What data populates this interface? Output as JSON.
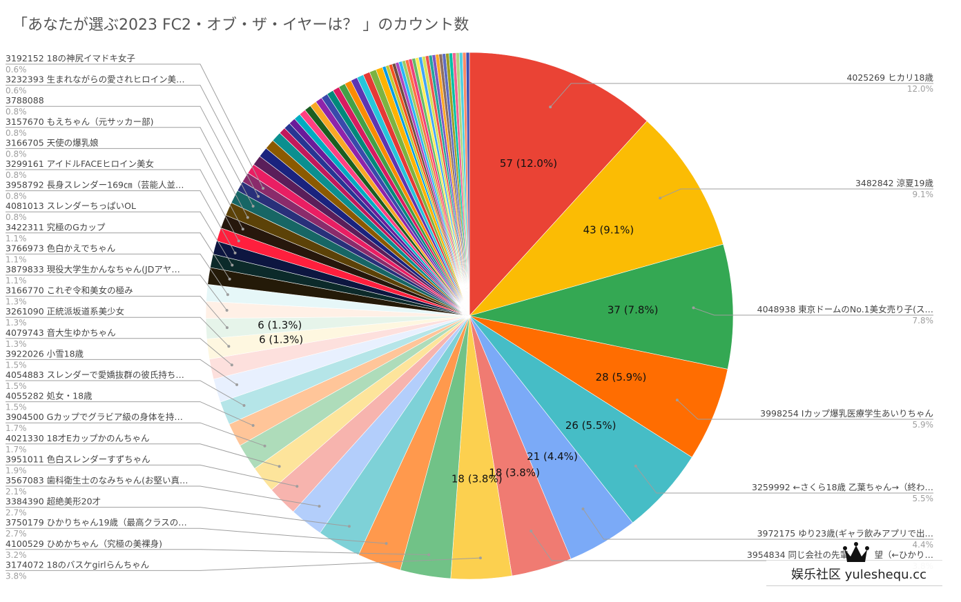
{
  "title": "「あなたが選ぶ2023 FC2・オブ・ザ・イヤーは？ 」のカウント数",
  "watermark": {
    "text": "娱乐社区 yuleshequ.cc",
    "logo": "crown-logo"
  },
  "chart_data": {
    "type": "pie",
    "title": "「あなたが選ぶ2023 FC2・オブ・ザ・イヤーは？ 」のカウント数",
    "total_approx": 475,
    "slices": [
      {
        "label": "4025269 ヒカリ18歳",
        "value": 57,
        "pct": "12.0%",
        "color": "#ea4335",
        "data_label": "57 (12.0%)",
        "legend_side": "right"
      },
      {
        "label": "3482842 涼夏19歳",
        "value": 43,
        "pct": "9.1%",
        "color": "#fbbc04",
        "data_label": "43 (9.1%)",
        "legend_side": "right"
      },
      {
        "label": "4048938 東京ドームのNo.1美女売り子(ス…",
        "value": 37,
        "pct": "7.8%",
        "color": "#34a853",
        "data_label": "37 (7.8%)",
        "legend_side": "right"
      },
      {
        "label": "3998254 Iカップ爆乳医療学生あいりちゃん",
        "value": 28,
        "pct": "5.9%",
        "color": "#ff6d01",
        "data_label": "28 (5.9%)",
        "legend_side": "right"
      },
      {
        "label": "3259992 ←さくら18歳 乙葉ちゃん→（終わ…",
        "value": 26,
        "pct": "5.5%",
        "color": "#46bdc6",
        "data_label": "26 (5.5%)",
        "legend_side": "right"
      },
      {
        "label": "3972175 ゆり23歳(ギャラ飲みアプリで出…",
        "value": 21,
        "pct": "4.4%",
        "color": "#7baaf7",
        "data_label": "21 (4.4%)",
        "legend_side": "right"
      },
      {
        "label": "3954834 同じ会社の先輩　　　望（←ひかり…",
        "value": 18,
        "pct": "3.8%",
        "color": "#f07b72",
        "data_label": "18 (3.8%)",
        "legend_side": "right"
      },
      {
        "label": "3174072 18のバスケgirlらんちゃん",
        "value": 18,
        "pct": "3.8%",
        "color": "#fcd04f",
        "data_label": "18 (3.8%)",
        "legend_side": "left"
      },
      {
        "label": "4100529 ひめかちゃん（究極の美裸身)",
        "value": 15,
        "pct": "3.2%",
        "color": "#71c287",
        "data_label": "",
        "legend_side": "left"
      },
      {
        "label": "3750179 ひかりちゃん19歳（最高クラスの…",
        "value": 13,
        "pct": "2.7%",
        "color": "#ff994d",
        "data_label": "",
        "legend_side": "left"
      },
      {
        "label": "3384390 超絶美形20才",
        "value": 13,
        "pct": "2.7%",
        "color": "#7ed1d7",
        "data_label": "",
        "legend_side": "left"
      },
      {
        "label": "3567083 歯科衛生士のなみちゃん(お堅い真…",
        "value": 10,
        "pct": "2.1%",
        "color": "#b3cefb",
        "data_label": "",
        "legend_side": "left"
      },
      {
        "label": "3951011 色白スレンダーすずちゃん",
        "value": 9,
        "pct": "1.9%",
        "color": "#f7b4ae",
        "data_label": "",
        "legend_side": "left"
      },
      {
        "label": "4021330 18才Eカップかのんちゃん",
        "value": 8,
        "pct": "1.7%",
        "color": "#fde49b",
        "data_label": "",
        "legend_side": "left"
      },
      {
        "label": "3904500 Gカップでグラビア級の身体を持…",
        "value": 8,
        "pct": "1.7%",
        "color": "#aedcba",
        "data_label": "",
        "legend_side": "left"
      },
      {
        "label": "4055282 処女・18歳",
        "value": 7,
        "pct": "1.5%",
        "color": "#ffc599",
        "data_label": "",
        "legend_side": "left"
      },
      {
        "label": "4054883 スレンダーで愛嬌抜群の彼氏持ち…",
        "value": 7,
        "pct": "1.5%",
        "color": "#b5e5e8",
        "data_label": "",
        "legend_side": "left"
      },
      {
        "label": "3922026 小雪18歳",
        "value": 7,
        "pct": "1.5%",
        "color": "#e8f0fe",
        "data_label": "",
        "legend_side": "left"
      },
      {
        "label": "4079743 音大生ゆかちゃん",
        "value": 6,
        "pct": "1.3%",
        "color": "#fde0dd",
        "data_label": "",
        "legend_side": "left"
      },
      {
        "label": "3261090 正統派坂道系美少女",
        "value": 6,
        "pct": "1.3%",
        "color": "#fef7e0",
        "data_label": "6 (1.3%)",
        "legend_side": "left"
      },
      {
        "label": "3166770 これぞ令和美女の極み",
        "value": 6,
        "pct": "1.3%",
        "color": "#e6f4ea",
        "data_label": "6 (1.3%)",
        "legend_side": "left"
      },
      {
        "label": "3879833 現役大学生かんなちゃん(JDアヤ…",
        "value": 5,
        "pct": "1.1%",
        "color": "#fff0e6",
        "data_label": "",
        "legend_side": "left"
      },
      {
        "label": "3766973 色白かえでちゃん",
        "value": 5,
        "pct": "1.1%",
        "color": "#e6f7f8",
        "data_label": "",
        "legend_side": "left"
      },
      {
        "label": "3422311 究極のGカップ",
        "value": 5,
        "pct": "1.1%",
        "color": "#241a08",
        "data_label": "",
        "legend_side": "left"
      },
      {
        "label": "4081013 スレンダーちっぱいOL",
        "value": 4,
        "pct": "0.8%",
        "color": "#0c2a2a",
        "data_label": "",
        "legend_side": "left"
      },
      {
        "label": "3958792 長身スレンダー169㎝（芸能人並…",
        "value": 4,
        "pct": "0.8%",
        "color": "#0d1640",
        "data_label": "",
        "legend_side": "left"
      },
      {
        "label": "3299161 アイドルFACEヒロイン美女",
        "value": 4,
        "pct": "0.8%",
        "color": "#ff1f3d",
        "data_label": "",
        "legend_side": "left"
      },
      {
        "label": "3166705 天使の爆乳娘",
        "value": 4,
        "pct": "0.8%",
        "color": "#26170c",
        "data_label": "",
        "legend_side": "left"
      },
      {
        "label": "3157670 もえちゃん（元サッカー部)",
        "value": 4,
        "pct": "0.8%",
        "color": "#5c4208",
        "data_label": "",
        "legend_side": "left"
      },
      {
        "label": "3788088",
        "value": 4,
        "pct": "0.8%",
        "color": "#176665",
        "data_label": "",
        "legend_side": "left"
      },
      {
        "label": "3232393 生まれながらの愛されヒロイン美…",
        "value": 3,
        "pct": "0.6%",
        "color": "#29307a",
        "data_label": "",
        "legend_side": "left"
      },
      {
        "label": "3192152 18の神尻イマドキ女子",
        "value": 3,
        "pct": "0.6%",
        "color": "#8a2b6b",
        "data_label": "",
        "legend_side": "left"
      }
    ],
    "remaining_small_slices": {
      "values": [
        3,
        3,
        3,
        3,
        3,
        2,
        2,
        2,
        2,
        2,
        2,
        2,
        2,
        2,
        2,
        2,
        2,
        2,
        2,
        2,
        2,
        2,
        2,
        1,
        1,
        1,
        1,
        1,
        1,
        1,
        1,
        1,
        1,
        1,
        1,
        1,
        1,
        1,
        1,
        1,
        1,
        1,
        1,
        1,
        1,
        1,
        1,
        1,
        1
      ],
      "colors": [
        "#e91e63",
        "#5a1e5a",
        "#1a237e",
        "#8b5a00",
        "#0b8f8f",
        "#c2185b",
        "#283593",
        "#6a1b9a",
        "#00acc1",
        "#ff4081",
        "#1b5e20",
        "#f9a825",
        "#8e24aa",
        "#3949ab",
        "#00897b",
        "#d81b60",
        "#43a047",
        "#fb8c00",
        "#5e35b1",
        "#26c6da",
        "#e53935",
        "#7cb342",
        "#ffb300",
        "#039be5",
        "#c0ca33",
        "#f4511e",
        "#6d4c41",
        "#ab47bc",
        "#29b6f6",
        "#9ccc65",
        "#ff7043",
        "#ec407a",
        "#66bb6a",
        "#ffee58",
        "#42a5f5",
        "#d4e157",
        "#ef5350",
        "#26a69a",
        "#7e57c2",
        "#ffa726",
        "#8d6e63",
        "#5c6bc0",
        "#9e9d24",
        "#00bfa5",
        "#f06292",
        "#aed581",
        "#4dd0e1",
        "#ff8a65",
        "#3f51b5"
      ]
    },
    "legend_position": "both-sides-with-leader-lines"
  }
}
